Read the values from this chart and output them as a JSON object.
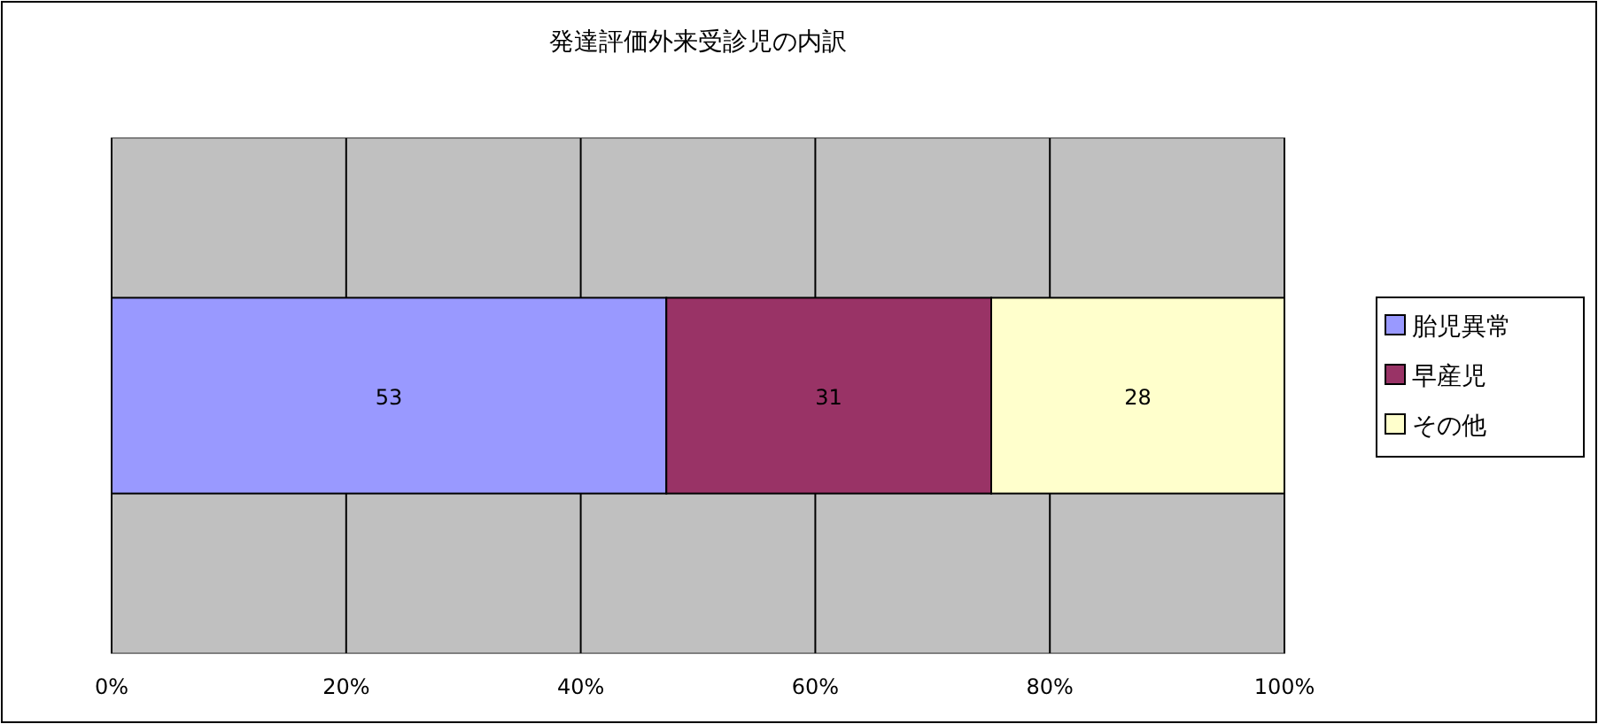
{
  "chart_data": {
    "type": "bar",
    "title": "発達評価外来受診児の内訳",
    "orientation": "horizontal",
    "stacked": true,
    "categories": [
      null
    ],
    "series": [
      {
        "name": "胎児異常",
        "color": "#9999ff",
        "values": [
          47.3
        ]
      },
      {
        "name": "早産児",
        "color": "#993366",
        "values": [
          27.7
        ]
      },
      {
        "name": "その他",
        "color": "#ffffcc",
        "values": [
          25.0
        ]
      }
    ],
    "annotations": [
      "53",
      "31",
      "28"
    ],
    "xlim": [
      0,
      100
    ],
    "xticks": [
      {
        "value": 0,
        "label": "0%"
      },
      {
        "value": 20,
        "label": "20%"
      },
      {
        "value": 40,
        "label": "40%"
      },
      {
        "value": 60,
        "label": "60%"
      },
      {
        "value": 80,
        "label": "80%"
      },
      {
        "value": 100,
        "label": "100%"
      }
    ],
    "grid": "x",
    "legend": "right"
  }
}
